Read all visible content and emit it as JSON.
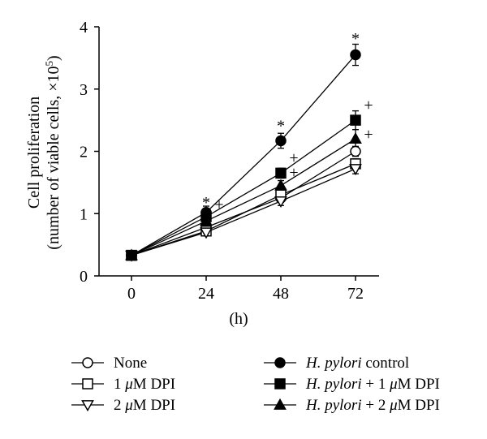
{
  "chart_data": {
    "type": "line",
    "title": "",
    "xlabel": "(h)",
    "ylabel": "Cell proliferation",
    "ylabel_line2": "(number of viable cells, ×10",
    "ylabel_exponent": "5",
    "ylabel_close": ")",
    "x": [
      0,
      24,
      48,
      72
    ],
    "x_tick_labels": [
      "0",
      "24",
      "48",
      "72"
    ],
    "y_ticks": [
      0,
      1,
      2,
      3,
      4
    ],
    "y_tick_labels": [
      "0",
      "1",
      "2",
      "3",
      "4"
    ],
    "ylim": [
      0,
      4
    ],
    "grid": false,
    "legend_position": "bottom",
    "series": [
      {
        "name": "None",
        "legend_parts": [
          {
            "text": "None",
            "italic": false
          }
        ],
        "marker": "circle",
        "filled": false,
        "values": [
          0.33,
          0.78,
          1.25,
          2.0
        ],
        "errors": [
          0.03,
          0.05,
          0.07,
          0.08
        ]
      },
      {
        "name": "1 μM DPI",
        "legend_parts": [
          {
            "text": "1 ",
            "italic": false
          },
          {
            "text": "μ",
            "italic": true
          },
          {
            "text": "M DPI",
            "italic": false
          }
        ],
        "marker": "square",
        "filled": false,
        "values": [
          0.33,
          0.72,
          1.3,
          1.8
        ],
        "errors": [
          0.03,
          0.05,
          0.07,
          0.08
        ]
      },
      {
        "name": "2 μM DPI",
        "legend_parts": [
          {
            "text": "2 ",
            "italic": false
          },
          {
            "text": "μ",
            "italic": true
          },
          {
            "text": "M DPI",
            "italic": false
          }
        ],
        "marker": "triangle-down",
        "filled": false,
        "values": [
          0.33,
          0.7,
          1.2,
          1.72
        ],
        "errors": [
          0.03,
          0.05,
          0.07,
          0.08
        ]
      },
      {
        "name": "H. pylori control",
        "legend_parts": [
          {
            "text": "H. pylori",
            "italic": true
          },
          {
            "text": " control",
            "italic": false
          }
        ],
        "marker": "circle",
        "filled": true,
        "values": [
          0.33,
          1.02,
          2.17,
          3.55
        ],
        "errors": [
          0.03,
          0.1,
          0.12,
          0.17
        ]
      },
      {
        "name": "H. pylori + 1 μM DPI",
        "legend_parts": [
          {
            "text": "H. pylori",
            "italic": true
          },
          {
            "text": " + 1 ",
            "italic": false
          },
          {
            "text": "μ",
            "italic": true
          },
          {
            "text": "M DPI",
            "italic": false
          }
        ],
        "marker": "square",
        "filled": true,
        "values": [
          0.33,
          0.95,
          1.65,
          2.5
        ],
        "errors": [
          0.03,
          0.06,
          0.08,
          0.15
        ]
      },
      {
        "name": "H. pylori + 2 μM DPI",
        "legend_parts": [
          {
            "text": "H. pylori",
            "italic": true
          },
          {
            "text": " + 2 ",
            "italic": false
          },
          {
            "text": "μ",
            "italic": true
          },
          {
            "text": "M DPI",
            "italic": false
          }
        ],
        "marker": "triangle-up",
        "filled": true,
        "values": [
          0.33,
          0.88,
          1.45,
          2.2
        ],
        "errors": [
          0.03,
          0.06,
          0.08,
          0.15
        ]
      }
    ],
    "annotations": [
      {
        "text": "*",
        "x": 24,
        "y": 1.25
      },
      {
        "text": "+",
        "x": 24,
        "y": 1.15
      },
      {
        "text": "*",
        "x": 48,
        "y": 2.48
      },
      {
        "text": "+",
        "x": 48,
        "y": 1.9
      },
      {
        "text": "+",
        "x": 48,
        "y": 1.67
      },
      {
        "text": "*",
        "x": 72,
        "y": 3.88
      },
      {
        "text": "+",
        "x": 72,
        "y": 2.75
      },
      {
        "text": "+",
        "x": 72,
        "y": 2.28
      }
    ]
  }
}
